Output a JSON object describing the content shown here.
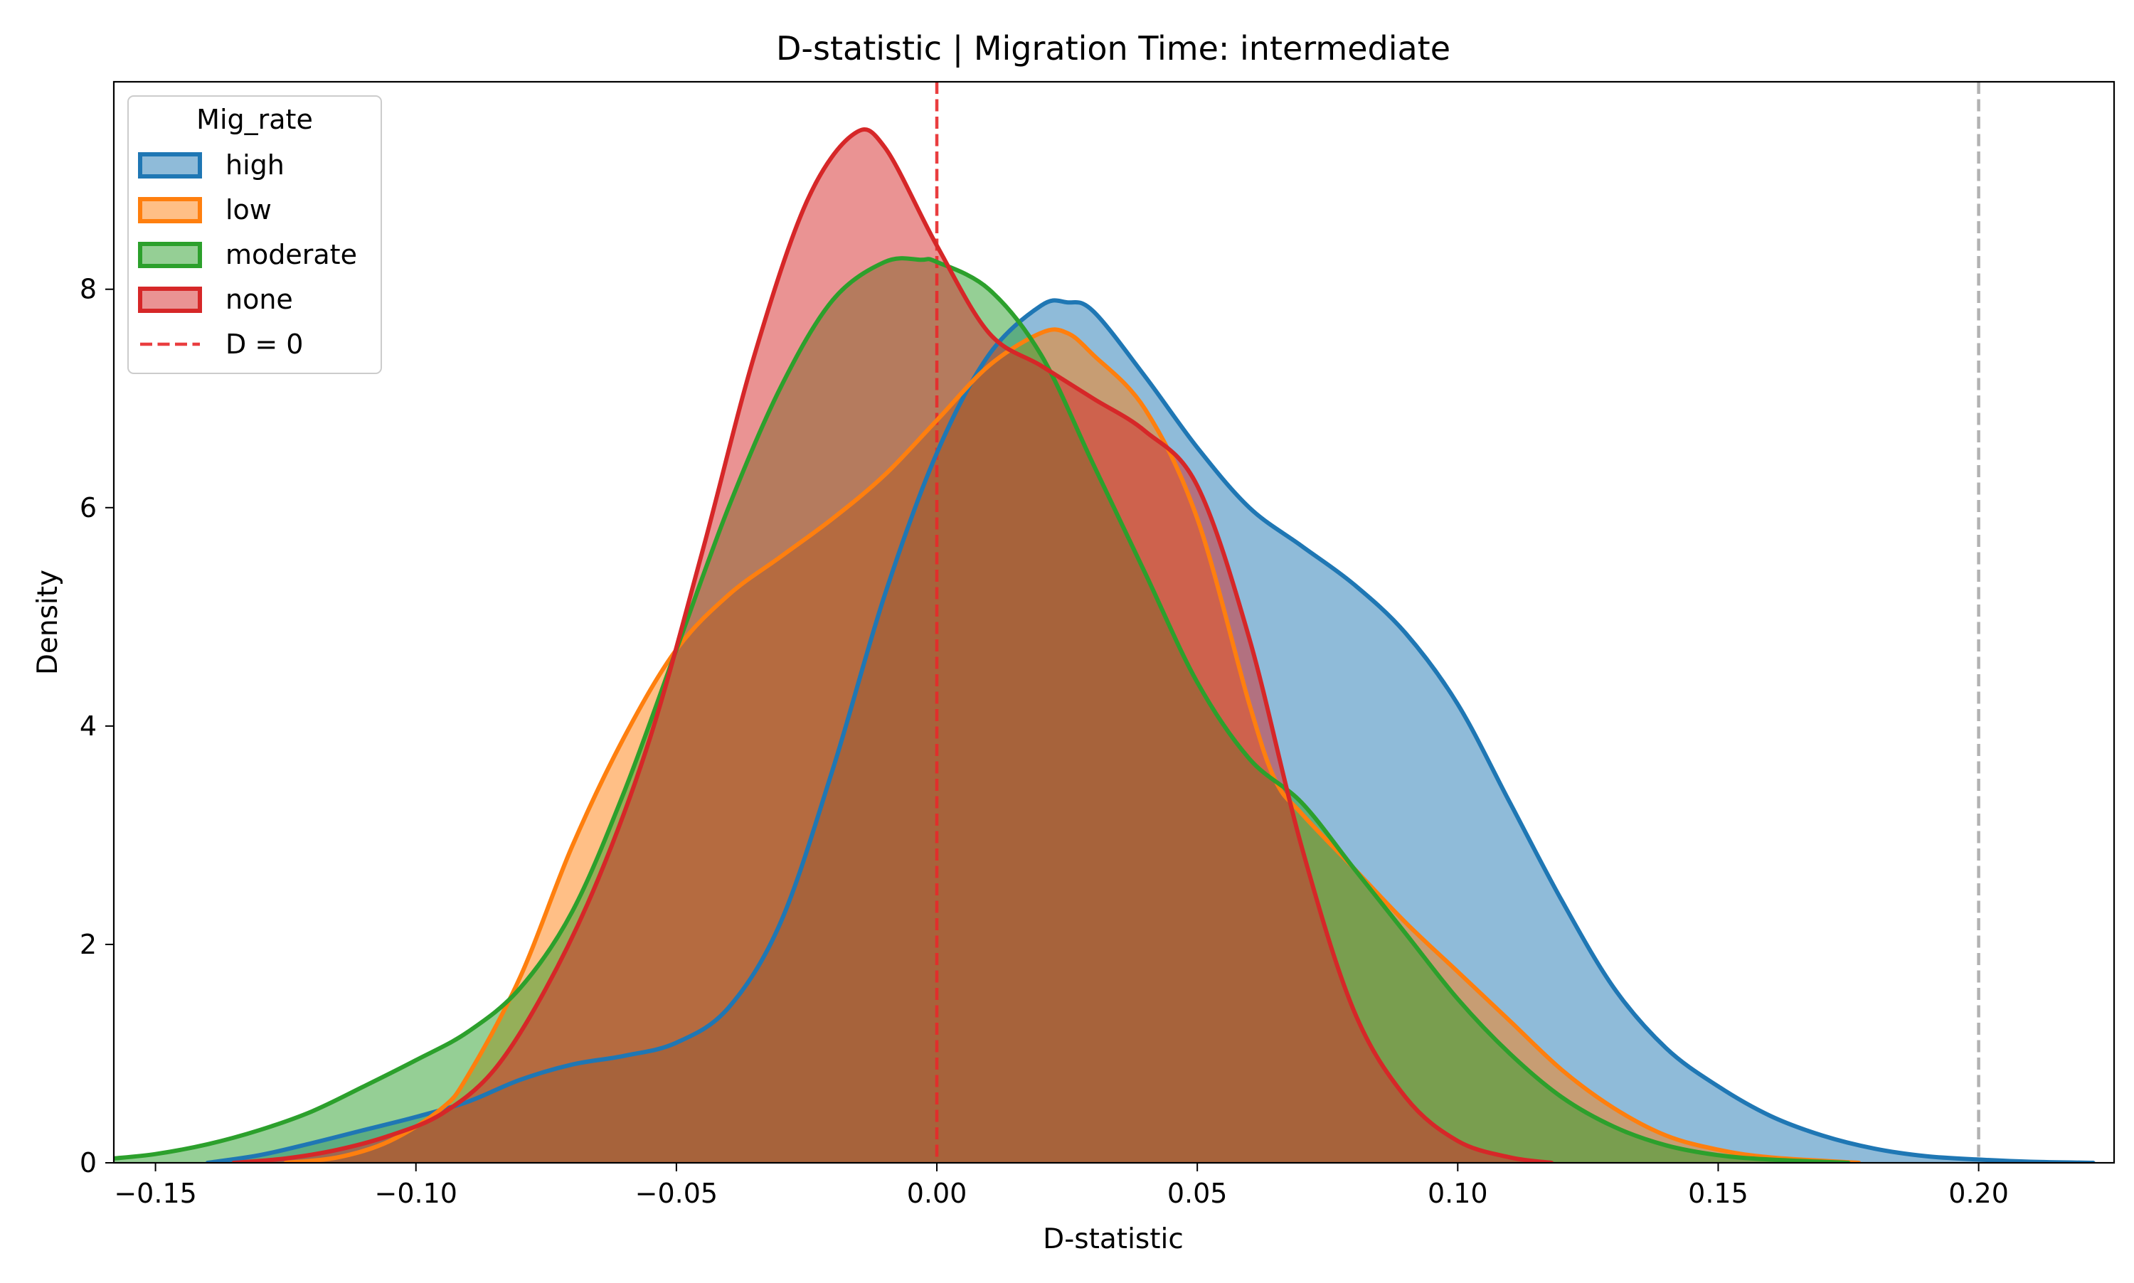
{
  "chart_data": {
    "type": "area",
    "title": "D-statistic | Migration Time: intermediate",
    "xlabel": "D-statistic",
    "ylabel": "Density",
    "xlim": [
      -0.158,
      0.226
    ],
    "ylim": [
      0,
      9.9
    ],
    "xticks": [
      -0.15,
      -0.1,
      -0.05,
      0.0,
      0.05,
      0.1,
      0.15,
      0.2
    ],
    "xtick_labels": [
      "−0.15",
      "−0.10",
      "−0.05",
      "0.00",
      "0.05",
      "0.10",
      "0.15",
      "0.20"
    ],
    "yticks": [
      0,
      2,
      4,
      6,
      8
    ],
    "ytick_labels": [
      "0",
      "2",
      "4",
      "6",
      "8"
    ],
    "grid": false,
    "legend": {
      "title": "Mig_rate",
      "placement": "top-left",
      "entries": [
        "high",
        "low",
        "moderate",
        "none",
        "D = 0"
      ]
    },
    "reference_lines": [
      {
        "label": "D = 0",
        "x": 0.0,
        "color": "#e8282a",
        "style": "dashed",
        "in_legend": true
      },
      {
        "label": "",
        "x": 0.2,
        "color": "#aaaaaa",
        "style": "dashed",
        "in_legend": false
      }
    ],
    "fill_opacity": 0.5,
    "series": [
      {
        "name": "high",
        "color": "#1f77b4",
        "fill": "#1f77b4",
        "points": [
          [
            -0.14,
            0
          ],
          [
            -0.13,
            0.07
          ],
          [
            -0.12,
            0.18
          ],
          [
            -0.11,
            0.3
          ],
          [
            -0.1,
            0.42
          ],
          [
            -0.09,
            0.56
          ],
          [
            -0.08,
            0.76
          ],
          [
            -0.07,
            0.9
          ],
          [
            -0.06,
            0.98
          ],
          [
            -0.05,
            1.1
          ],
          [
            -0.04,
            1.42
          ],
          [
            -0.03,
            2.2
          ],
          [
            -0.02,
            3.6
          ],
          [
            -0.01,
            5.2
          ],
          [
            0.0,
            6.5
          ],
          [
            0.01,
            7.4
          ],
          [
            0.02,
            7.85
          ],
          [
            0.025,
            7.88
          ],
          [
            0.03,
            7.8
          ],
          [
            0.04,
            7.2
          ],
          [
            0.05,
            6.55
          ],
          [
            0.06,
            6.0
          ],
          [
            0.07,
            5.65
          ],
          [
            0.08,
            5.3
          ],
          [
            0.09,
            4.85
          ],
          [
            0.1,
            4.2
          ],
          [
            0.11,
            3.3
          ],
          [
            0.12,
            2.4
          ],
          [
            0.13,
            1.6
          ],
          [
            0.14,
            1.05
          ],
          [
            0.15,
            0.7
          ],
          [
            0.16,
            0.43
          ],
          [
            0.17,
            0.25
          ],
          [
            0.18,
            0.13
          ],
          [
            0.19,
            0.06
          ],
          [
            0.2,
            0.03
          ],
          [
            0.21,
            0.01
          ],
          [
            0.222,
            0.0
          ]
        ]
      },
      {
        "name": "low",
        "color": "#ff7f0e",
        "fill": "#ff7f0e",
        "points": [
          [
            -0.125,
            0
          ],
          [
            -0.115,
            0.05
          ],
          [
            -0.105,
            0.2
          ],
          [
            -0.095,
            0.5
          ],
          [
            -0.09,
            0.8
          ],
          [
            -0.08,
            1.7
          ],
          [
            -0.07,
            2.9
          ],
          [
            -0.06,
            3.9
          ],
          [
            -0.05,
            4.7
          ],
          [
            -0.04,
            5.2
          ],
          [
            -0.03,
            5.55
          ],
          [
            -0.02,
            5.9
          ],
          [
            -0.01,
            6.3
          ],
          [
            0.0,
            6.8
          ],
          [
            0.01,
            7.3
          ],
          [
            0.02,
            7.6
          ],
          [
            0.025,
            7.6
          ],
          [
            0.03,
            7.4
          ],
          [
            0.04,
            6.9
          ],
          [
            0.05,
            5.9
          ],
          [
            0.06,
            4.2
          ],
          [
            0.065,
            3.5
          ],
          [
            0.07,
            3.2
          ],
          [
            0.08,
            2.7
          ],
          [
            0.09,
            2.2
          ],
          [
            0.1,
            1.75
          ],
          [
            0.11,
            1.3
          ],
          [
            0.12,
            0.85
          ],
          [
            0.13,
            0.5
          ],
          [
            0.14,
            0.25
          ],
          [
            0.15,
            0.12
          ],
          [
            0.16,
            0.05
          ],
          [
            0.177,
            0.0
          ]
        ]
      },
      {
        "name": "moderate",
        "color": "#2ca02c",
        "fill": "#2ca02c",
        "points": [
          [
            -0.158,
            0.04
          ],
          [
            -0.15,
            0.08
          ],
          [
            -0.14,
            0.17
          ],
          [
            -0.13,
            0.3
          ],
          [
            -0.12,
            0.47
          ],
          [
            -0.11,
            0.7
          ],
          [
            -0.1,
            0.94
          ],
          [
            -0.09,
            1.2
          ],
          [
            -0.08,
            1.6
          ],
          [
            -0.07,
            2.3
          ],
          [
            -0.06,
            3.4
          ],
          [
            -0.05,
            4.7
          ],
          [
            -0.04,
            6.0
          ],
          [
            -0.03,
            7.1
          ],
          [
            -0.02,
            7.9
          ],
          [
            -0.01,
            8.25
          ],
          [
            -0.003,
            8.27
          ],
          [
            0.0,
            8.25
          ],
          [
            0.01,
            8.0
          ],
          [
            0.02,
            7.4
          ],
          [
            0.03,
            6.4
          ],
          [
            0.04,
            5.4
          ],
          [
            0.05,
            4.4
          ],
          [
            0.06,
            3.7
          ],
          [
            0.07,
            3.3
          ],
          [
            0.08,
            2.7
          ],
          [
            0.09,
            2.1
          ],
          [
            0.1,
            1.5
          ],
          [
            0.11,
            1.0
          ],
          [
            0.12,
            0.6
          ],
          [
            0.13,
            0.33
          ],
          [
            0.14,
            0.16
          ],
          [
            0.15,
            0.07
          ],
          [
            0.16,
            0.03
          ],
          [
            0.175,
            0.0
          ]
        ]
      },
      {
        "name": "none",
        "color": "#d62728",
        "fill": "#d62728",
        "points": [
          [
            -0.135,
            0
          ],
          [
            -0.125,
            0.04
          ],
          [
            -0.115,
            0.12
          ],
          [
            -0.105,
            0.25
          ],
          [
            -0.095,
            0.45
          ],
          [
            -0.085,
            0.85
          ],
          [
            -0.075,
            1.6
          ],
          [
            -0.065,
            2.6
          ],
          [
            -0.055,
            3.9
          ],
          [
            -0.045,
            5.6
          ],
          [
            -0.035,
            7.4
          ],
          [
            -0.025,
            8.8
          ],
          [
            -0.016,
            9.42
          ],
          [
            -0.01,
            9.3
          ],
          [
            0.0,
            8.4
          ],
          [
            0.01,
            7.6
          ],
          [
            0.02,
            7.3
          ],
          [
            0.03,
            7.0
          ],
          [
            0.04,
            6.7
          ],
          [
            0.05,
            6.2
          ],
          [
            0.06,
            4.8
          ],
          [
            0.07,
            2.9
          ],
          [
            0.08,
            1.4
          ],
          [
            0.09,
            0.6
          ],
          [
            0.1,
            0.2
          ],
          [
            0.11,
            0.05
          ],
          [
            0.118,
            0.0
          ]
        ]
      }
    ]
  }
}
